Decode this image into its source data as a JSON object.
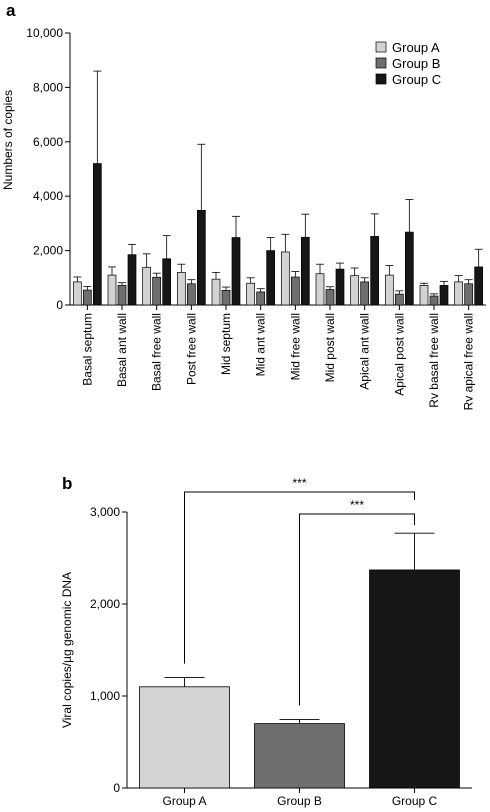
{
  "colors": {
    "Group A": "#d3d3d3",
    "Group B": "#6e6e6e",
    "Group C": "#161616"
  },
  "chart_data": [
    {
      "panel_label": "a",
      "type": "bar",
      "ylabel": "Numbers of copies",
      "ylim": [
        0,
        10000
      ],
      "y_ticks": [
        "0",
        "2,000",
        "4,000",
        "6,000",
        "8,000",
        "10,000"
      ],
      "legend_position": "top-right",
      "categories": [
        "Basal septum",
        "Basal ant wall",
        "Basal free wall",
        "Post free wall",
        "Mid septum",
        "Mid ant wall",
        "Mid free wall",
        "Mid post wall",
        "Apical ant wall",
        "Apical post wall",
        "Rv basal free wall",
        "Rv apical free wall"
      ],
      "series": [
        {
          "name": "Group A",
          "values": [
            850,
            1100,
            1380,
            1200,
            950,
            800,
            1950,
            1150,
            1080,
            1100,
            720,
            850
          ],
          "errors": [
            180,
            300,
            500,
            300,
            250,
            200,
            650,
            350,
            280,
            350,
            80,
            230
          ]
        },
        {
          "name": "Group B",
          "values": [
            550,
            720,
            1020,
            780,
            540,
            480,
            1030,
            570,
            850,
            400,
            330,
            780
          ],
          "errors": [
            130,
            100,
            150,
            150,
            120,
            120,
            200,
            100,
            150,
            120,
            80,
            150
          ]
        },
        {
          "name": "Group C",
          "values": [
            5200,
            1850,
            1700,
            3480,
            2480,
            2000,
            2490,
            1320,
            2520,
            2680,
            720,
            1400
          ],
          "errors": [
            3400,
            380,
            850,
            2430,
            780,
            480,
            850,
            220,
            830,
            1200,
            150,
            650
          ]
        }
      ]
    },
    {
      "panel_label": "b",
      "type": "bar",
      "ylabel": "Viral copies/µg genomic DNA",
      "ylim": [
        0,
        3000
      ],
      "y_ticks": [
        "0",
        "1,000",
        "2,000",
        "3,000"
      ],
      "categories": [
        "Group A",
        "Group B",
        "Group C"
      ],
      "values": [
        1100,
        700,
        2370
      ],
      "errors": [
        100,
        45,
        400
      ],
      "annotations": [
        "***",
        "***"
      ]
    }
  ]
}
